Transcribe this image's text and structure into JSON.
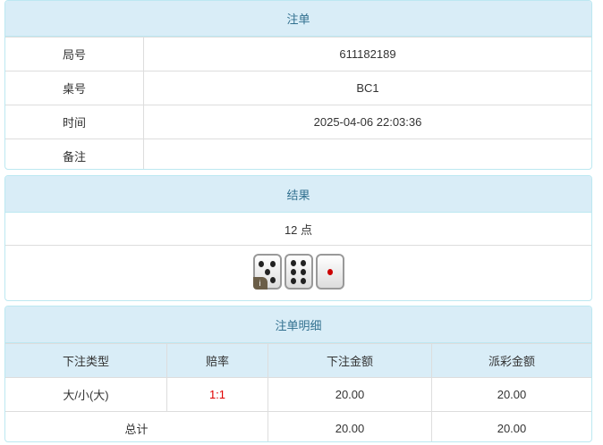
{
  "order": {
    "title": "注单",
    "rows": [
      {
        "label": "局号",
        "value": "611182189"
      },
      {
        "label": "桌号",
        "value": "BC1"
      },
      {
        "label": "时间",
        "value": "2025-04-06 22:03:36"
      },
      {
        "label": "备注",
        "value": ""
      }
    ]
  },
  "result": {
    "title": "结果",
    "points": "12 点",
    "dice": [
      5,
      6,
      1
    ],
    "info_badge": "i"
  },
  "detail": {
    "title": "注单明细",
    "headers": [
      "下注类型",
      "赔率",
      "下注金额",
      "派彩金额"
    ],
    "rows": [
      {
        "type": "大/小(大)",
        "odds": "1:1",
        "bet": "20.00",
        "payout": "20.00"
      }
    ],
    "total": {
      "label": "总计",
      "bet": "20.00",
      "payout": "20.00"
    },
    "odds_color": "#e00000"
  }
}
